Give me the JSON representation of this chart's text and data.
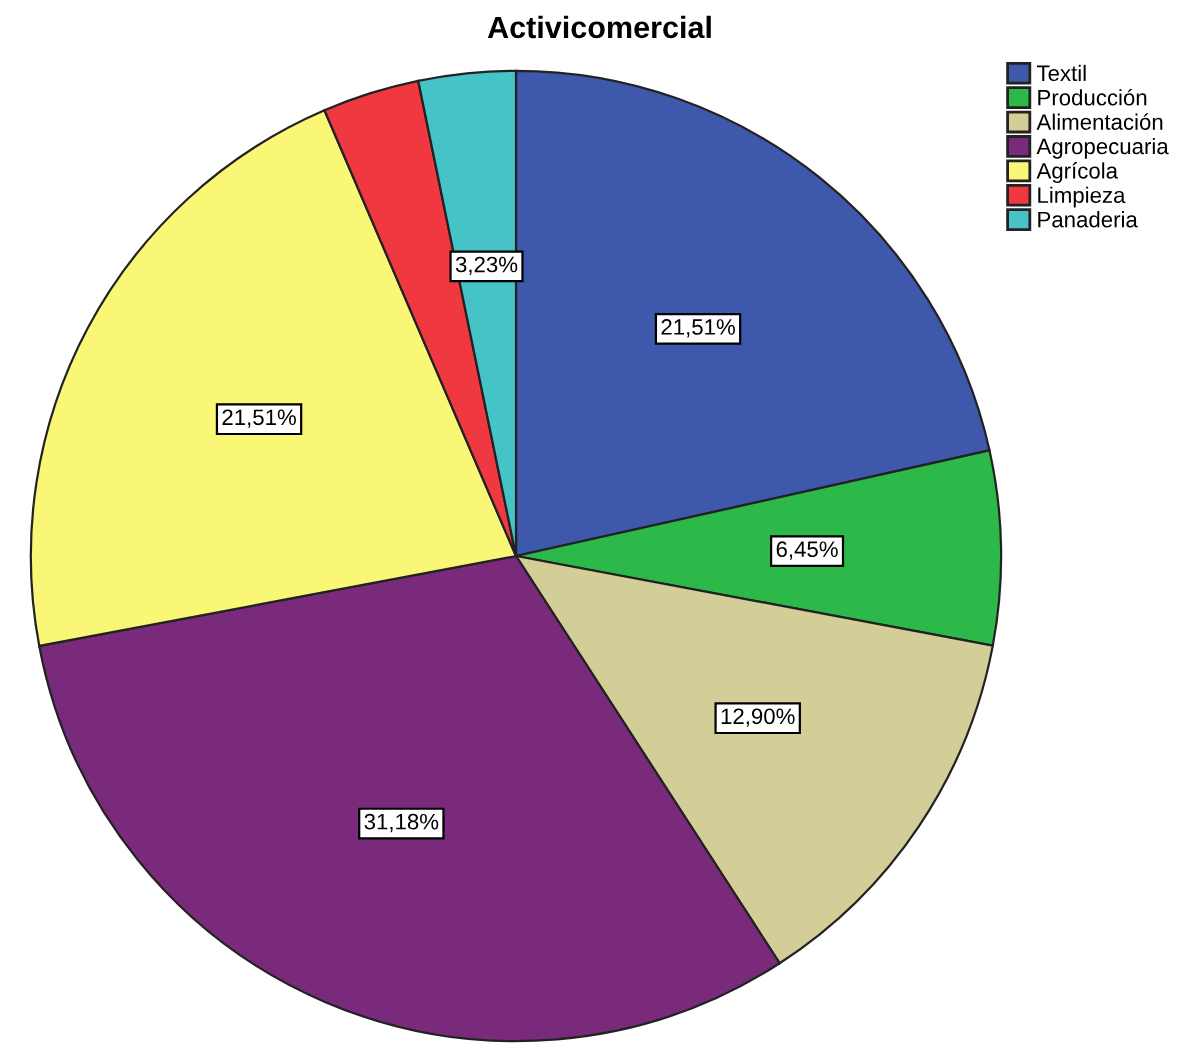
{
  "chart_data": {
    "type": "pie",
    "title": "Activicomercial",
    "categories": [
      "Textil",
      "Producción",
      "Alimentación",
      "Agropecuaria",
      "Agrícola",
      "Limpieza",
      "Panaderia"
    ],
    "values": [
      21.51,
      6.45,
      12.9,
      31.18,
      21.51,
      3.23,
      3.23
    ],
    "value_labels": [
      "21,51%",
      "6,45%",
      "12,90%",
      "31,18%",
      "21,51%",
      null,
      "3,23%"
    ],
    "colors": [
      "#3e58ac",
      "#2db84a",
      "#d3ce98",
      "#7a2a7a",
      "#fbf776",
      "#ef3840",
      "#45c3c6"
    ],
    "legend": "top right"
  }
}
